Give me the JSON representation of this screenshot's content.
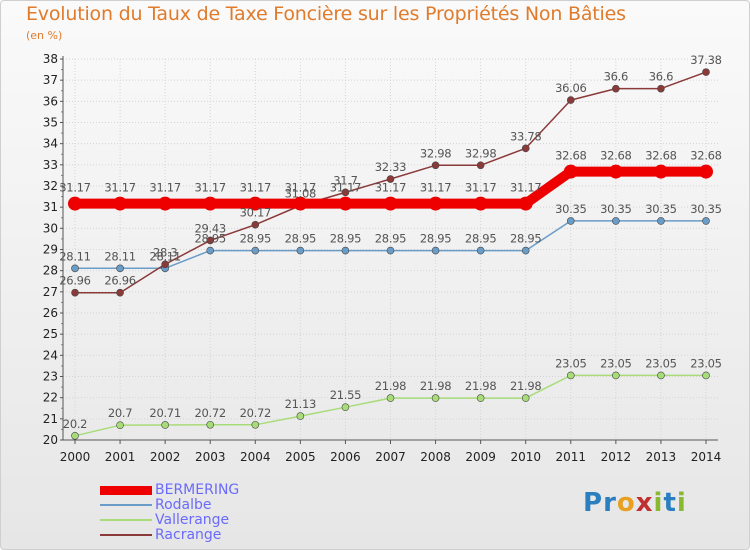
{
  "title": "Evolution du Taux de Taxe Foncière sur les Propriétés Non Bâties",
  "unit_label": "(en %)",
  "logo": {
    "letters": [
      "P",
      "r",
      "o",
      "x",
      "i",
      "t",
      "i"
    ],
    "colors": [
      "#2a7fc0",
      "#2a7fc0",
      "#e8a020",
      "#c03030",
      "#8ab833",
      "#2a7fc0",
      "#8ab833"
    ]
  },
  "chart_data": {
    "type": "line",
    "title": "Evolution du Taux de Taxe Foncière sur les Propriétés Non Bâties",
    "ylabel": "(en %)",
    "ylim": [
      20,
      38
    ],
    "yticks": [
      20,
      21,
      22,
      23,
      24,
      25,
      26,
      27,
      28,
      29,
      30,
      31,
      32,
      33,
      34,
      35,
      36,
      37,
      38
    ],
    "x": [
      "2000",
      "2001",
      "2002",
      "2003",
      "2004",
      "2005",
      "2006",
      "2007",
      "2008",
      "2009",
      "2010",
      "2011",
      "2012",
      "2013",
      "2014"
    ],
    "grid": true,
    "legend_position": "bottom-left",
    "series": [
      {
        "name": "BERMERING",
        "color": "#ee0000",
        "values": [
          31.17,
          31.17,
          31.17,
          31.17,
          31.17,
          31.17,
          31.17,
          31.17,
          31.17,
          31.17,
          31.17,
          32.68,
          32.68,
          32.68,
          32.68
        ],
        "labels": [
          "31.17",
          "31.17",
          "31.17",
          "31.17",
          "31.17",
          "31.17",
          "31.17",
          "31.17",
          "31.17",
          "31.17",
          "31.17",
          "32.68",
          "32.68",
          "32.68",
          "32.68"
        ]
      },
      {
        "name": "Rodalbe",
        "color": "#6a9cc8",
        "values": [
          28.11,
          28.11,
          28.11,
          28.95,
          28.95,
          28.95,
          28.95,
          28.95,
          28.95,
          28.95,
          28.95,
          30.35,
          30.35,
          30.35,
          30.35
        ],
        "labels": [
          "28.11",
          "28.11",
          "28.11",
          "28.95",
          "28.95",
          "28.95",
          "28.95",
          "28.95",
          "28.95",
          "28.95",
          "28.95",
          "30.35",
          "30.35",
          "30.35",
          "30.35"
        ]
      },
      {
        "name": "Vallerange",
        "color": "#a8dc78",
        "values": [
          20.2,
          20.7,
          20.71,
          20.72,
          20.72,
          21.13,
          21.55,
          21.98,
          21.98,
          21.98,
          21.98,
          23.05,
          23.05,
          23.05,
          23.05
        ],
        "labels": [
          "20.2",
          "20.7",
          "20.71",
          "20.72",
          "20.72",
          "21.13",
          "21.55",
          "21.98",
          "21.98",
          "21.98",
          "21.98",
          "23.05",
          "23.05",
          "23.05",
          "23.05"
        ]
      },
      {
        "name": "Racrange",
        "color": "#8b3a3a",
        "values": [
          26.96,
          26.96,
          28.3,
          29.43,
          30.17,
          31.08,
          31.7,
          32.33,
          32.98,
          32.98,
          33.78,
          36.06,
          36.6,
          36.6,
          37.38
        ],
        "labels": [
          "26.96",
          "26.96",
          "28.3",
          "29.43",
          "30.17",
          "31.08",
          "31.7",
          "32.33",
          "32.98",
          "32.98",
          "33.78",
          "36.06",
          "36.6",
          "36.6",
          "37.38"
        ]
      }
    ]
  }
}
